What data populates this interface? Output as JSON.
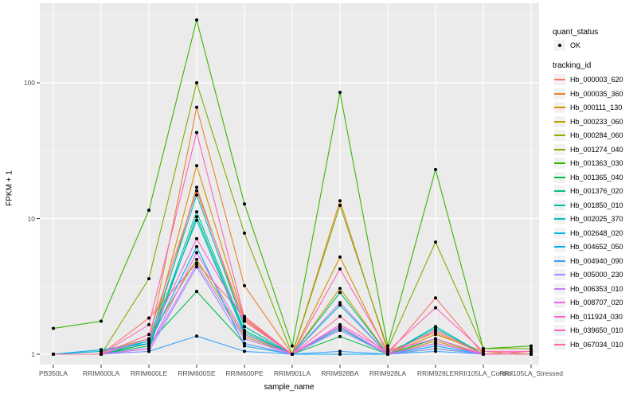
{
  "figure": {
    "bg": "#FFFFFF",
    "panel_bg": "#EBEBEB",
    "grid_color": "#FFFFFF",
    "tick_mark_color": "#333333",
    "axis_text_color": "#4D4D4D",
    "text_color": "#000000",
    "legend_key_bg": "#F2F2F2",
    "point_color": "#000000"
  },
  "axes": {
    "x_title": "sample_name",
    "y_title": "FPKM + 1",
    "y_tick_labels": [
      "1",
      "10",
      "100"
    ]
  },
  "legend": {
    "quant_status_title": "quant_status",
    "ok_label": "OK",
    "tracking_title": "tracking_id"
  },
  "chart_data": {
    "type": "line",
    "title": "",
    "xlabel": "sample_name",
    "ylabel": "FPKM + 1",
    "y_scale": "log10",
    "y_ticks": [
      1,
      10,
      100
    ],
    "y_minor_ticks": [
      3.162,
      31.62,
      316.2
    ],
    "ylim_log10": [
      -0.12,
      2.57
    ],
    "grid": true,
    "legend_position": "right",
    "point_marker": "filled-black-circle",
    "quant_status_levels": [
      "OK"
    ],
    "categories": [
      "PB350LA",
      "RRIM600LA",
      "RRIM600LE",
      "RRIM600SE",
      "RRIM600PE",
      "RRIM901LA",
      "RRIM928BA",
      "RRIM928LA",
      "RRIM928LE",
      "RRII105LA_Control",
      "RRII105LA_Stressed"
    ],
    "series": [
      {
        "name": "Hb_000003_620",
        "color": "#F8766D",
        "values": [
          1,
          1,
          1.85,
          4.7,
          1.9,
          1,
          1.6,
          1,
          2.6,
          1,
          1
        ]
      },
      {
        "name": "Hb_000035_360",
        "color": "#EA8331",
        "values": [
          1,
          1,
          1.2,
          66,
          3.2,
          1,
          13.5,
          1.05,
          1.45,
          1,
          1
        ]
      },
      {
        "name": "Hb_000111_130",
        "color": "#D89000",
        "values": [
          1,
          1,
          1.15,
          24.5,
          1.8,
          1,
          5.2,
          1,
          1.4,
          1.05,
          1
        ]
      },
      {
        "name": "Hb_000233_060",
        "color": "#C09B00",
        "values": [
          1,
          1,
          1.1,
          17,
          1.6,
          1,
          3.05,
          1,
          1.25,
          1,
          1
        ]
      },
      {
        "name": "Hb_000284_060",
        "color": "#A3A500",
        "values": [
          1,
          1.05,
          1.3,
          5.0,
          1.35,
          1,
          1.55,
          1,
          1.3,
          1,
          1.05
        ]
      },
      {
        "name": "Hb_001274_040",
        "color": "#7CAE00",
        "values": [
          1,
          1,
          3.6,
          100,
          7.8,
          1,
          12.5,
          1.1,
          6.7,
          1.1,
          1.1
        ]
      },
      {
        "name": "Hb_001363_030",
        "color": "#39B600",
        "values": [
          1.55,
          1.75,
          11.5,
          290,
          12.8,
          1.15,
          85,
          1.15,
          23,
          1.1,
          1.15
        ]
      },
      {
        "name": "Hb_001365_040",
        "color": "#00BB4E",
        "values": [
          1,
          1,
          1.2,
          2.9,
          1.2,
          1,
          1.35,
          1,
          1.1,
          1,
          1
        ]
      },
      {
        "name": "Hb_001376_020",
        "color": "#00C087",
        "values": [
          1,
          1,
          1.1,
          10.3,
          1.45,
          1,
          2.85,
          1,
          1.3,
          1,
          1
        ]
      },
      {
        "name": "Hb_001850_010",
        "color": "#00C1A3",
        "values": [
          1,
          1,
          1.15,
          11.2,
          1.5,
          1,
          1.6,
          1,
          1.6,
          1,
          1
        ]
      },
      {
        "name": "Hb_002025_370",
        "color": "#00BFC4",
        "values": [
          1,
          1,
          1.25,
          14.9,
          1.6,
          1,
          2.3,
          1,
          1.55,
          1,
          1
        ]
      },
      {
        "name": "Hb_002648_020",
        "color": "#00BAE0",
        "values": [
          1,
          1.05,
          1.25,
          9.7,
          1.4,
          1,
          1.55,
          1,
          1.2,
          1,
          1
        ]
      },
      {
        "name": "Hb_004652_050",
        "color": "#00B0F6",
        "values": [
          1,
          1.08,
          1.2,
          6.2,
          1.15,
          1,
          1.0,
          1,
          1.15,
          1,
          1
        ]
      },
      {
        "name": "Hb_004940_090",
        "color": "#35A2FF",
        "values": [
          1,
          1,
          1.05,
          1.36,
          1.05,
          1,
          1.05,
          1,
          1.05,
          1,
          1
        ]
      },
      {
        "name": "Hb_005000_230",
        "color": "#9590FF",
        "values": [
          1,
          1,
          1.05,
          4.4,
          1.2,
          1,
          1.5,
          1,
          1.1,
          1,
          1
        ]
      },
      {
        "name": "Hb_006353_010",
        "color": "#C77CFF",
        "values": [
          1,
          1,
          1.1,
          4.6,
          1.3,
          1,
          2.4,
          1,
          1.2,
          1,
          1
        ]
      },
      {
        "name": "Hb_008707_020",
        "color": "#E76BF3",
        "values": [
          1,
          1,
          1.1,
          5.6,
          1.4,
          1,
          1.6,
          1,
          1.2,
          1,
          1
        ]
      },
      {
        "name": "Hb_011924_030",
        "color": "#FA62DB",
        "values": [
          1,
          1,
          1.3,
          7.1,
          1.75,
          1,
          1.65,
          1.05,
          1.3,
          1,
          1.05
        ]
      },
      {
        "name": "Hb_039650_010",
        "color": "#FF62BC",
        "values": [
          1,
          1,
          1.65,
          43,
          1.85,
          1,
          4.25,
          1.05,
          2.2,
          1.05,
          1.05
        ]
      },
      {
        "name": "Hb_067034_010",
        "color": "#FF6A98",
        "values": [
          1,
          1,
          1.4,
          16,
          1.75,
          1,
          1.9,
          1,
          1.5,
          1,
          1
        ]
      }
    ]
  }
}
